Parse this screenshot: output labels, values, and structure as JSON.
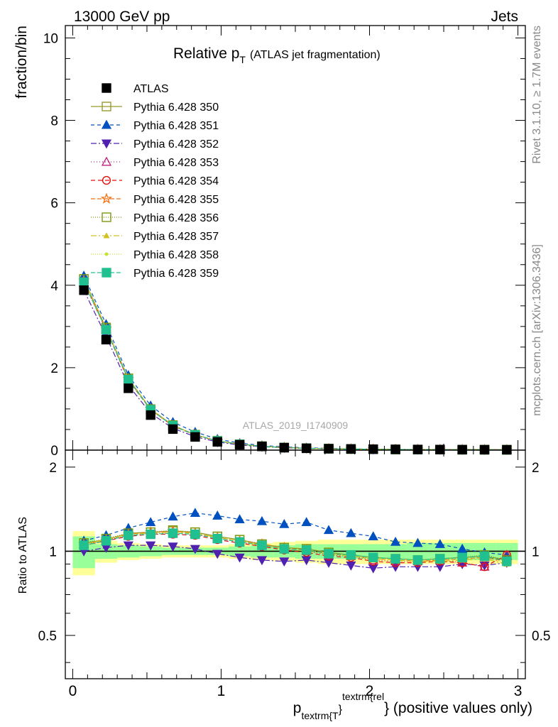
{
  "header": {
    "left": "13000 GeV pp",
    "right": "Jets"
  },
  "side_labels": {
    "rivet": "Rivet 3.1.10, ≥ 1.7M events",
    "mcplots": "mcplots.cern.ch [arXiv:1306.3436]"
  },
  "chart_data": {
    "type": "line",
    "title_main": "Relative p",
    "title_sub": "T",
    "title_extra": "(ATLAS jet fragmentation)",
    "watermark": "ATLAS_2019_I1740909",
    "ylabel": "fraction/bin",
    "ratio_ylabel": "Ratio to ATLAS",
    "xlabel_main": "p",
    "xlabel_sub": "textrm{T",
    "xlabel_sup": "textrm{rel",
    "xlabel_tail": "} (positive values only)",
    "xlim": [
      -0.05,
      3.05
    ],
    "ylim": [
      0,
      10.3
    ],
    "ratio_ylim": [
      0.35,
      2.3
    ],
    "xticks": [
      "0",
      "1",
      "2",
      "3"
    ],
    "yticks": [
      "0",
      "2",
      "4",
      "6",
      "8",
      "10"
    ],
    "ratio_yticks": [
      "0.5",
      "1",
      "2"
    ],
    "x": [
      0.075,
      0.225,
      0.375,
      0.525,
      0.675,
      0.825,
      0.975,
      1.125,
      1.275,
      1.425,
      1.575,
      1.725,
      1.875,
      2.025,
      2.175,
      2.325,
      2.475,
      2.625,
      2.775,
      2.925
    ],
    "data": {
      "name": "ATLAS",
      "values": [
        3.88,
        2.68,
        1.5,
        0.85,
        0.51,
        0.32,
        0.2,
        0.13,
        0.09,
        0.06,
        0.045,
        0.035,
        0.028,
        0.022,
        0.018,
        0.015,
        0.013,
        0.011,
        0.01,
        0.009
      ],
      "band_inner": [
        0.13,
        0.06,
        0.05,
        0.04,
        0.03,
        0.03,
        0.03,
        0.04,
        0.05,
        0.05,
        0.06,
        0.06,
        0.06,
        0.06,
        0.06,
        0.07,
        0.07,
        0.07,
        0.07,
        0.07
      ],
      "band_outer": [
        0.18,
        0.09,
        0.07,
        0.06,
        0.05,
        0.05,
        0.05,
        0.06,
        0.07,
        0.08,
        0.09,
        0.1,
        0.1,
        0.1,
        0.1,
        0.1,
        0.1,
        0.1,
        0.1,
        0.1
      ]
    },
    "series": [
      {
        "name": "Pythia 6.428 350",
        "color": "#9a9a2a",
        "marker": "square-open",
        "dash": "",
        "ratio": [
          1.07,
          1.1,
          1.16,
          1.17,
          1.18,
          1.17,
          1.13,
          1.1,
          1.06,
          1.03,
          1.02,
          0.99,
          0.97,
          0.95,
          0.94,
          0.93,
          0.94,
          0.95,
          0.96,
          0.93
        ]
      },
      {
        "name": "Pythia 6.428 351",
        "color": "#0050c0",
        "marker": "triangle-up",
        "dash": "5,4",
        "ratio": [
          1.09,
          1.14,
          1.21,
          1.27,
          1.33,
          1.37,
          1.34,
          1.3,
          1.28,
          1.25,
          1.27,
          1.19,
          1.16,
          1.13,
          1.08,
          1.07,
          1.06,
          1.02,
          0.99,
          0.97
        ]
      },
      {
        "name": "Pythia 6.428 352",
        "color": "#5020b0",
        "marker": "triangle-down",
        "dash": "8,3,2,3",
        "ratio": [
          1.0,
          1.03,
          1.05,
          1.05,
          1.04,
          1.02,
          0.98,
          0.95,
          0.93,
          0.92,
          0.93,
          0.91,
          0.89,
          0.87,
          0.88,
          0.88,
          0.88,
          0.9,
          0.89,
          0.91
        ]
      },
      {
        "name": "Pythia 6.428 353",
        "color": "#c0207a",
        "marker": "triangle-open",
        "dash": "1,3",
        "ratio": [
          1.05,
          1.09,
          1.14,
          1.16,
          1.16,
          1.15,
          1.11,
          1.08,
          1.05,
          1.02,
          1.0,
          0.97,
          0.96,
          0.93,
          0.92,
          0.92,
          0.93,
          0.91,
          0.88,
          0.97
        ]
      },
      {
        "name": "Pythia 6.428 354",
        "color": "#e01010",
        "marker": "circle-open",
        "dash": "6,4",
        "ratio": [
          1.05,
          1.09,
          1.13,
          1.15,
          1.15,
          1.14,
          1.1,
          1.07,
          1.04,
          1.01,
          0.99,
          0.96,
          0.95,
          0.92,
          0.91,
          0.91,
          0.92,
          0.91,
          0.88,
          0.97
        ]
      },
      {
        "name": "Pythia 6.428 355",
        "color": "#f07010",
        "marker": "star-open",
        "dash": "6,3",
        "ratio": [
          1.06,
          1.1,
          1.15,
          1.17,
          1.18,
          1.16,
          1.12,
          1.09,
          1.06,
          1.03,
          1.01,
          0.98,
          0.96,
          0.94,
          0.93,
          0.92,
          0.93,
          0.94,
          0.95,
          0.92
        ]
      },
      {
        "name": "Pythia 6.428 356",
        "color": "#7a9a10",
        "marker": "square-open",
        "dash": "1,2",
        "ratio": [
          1.07,
          1.11,
          1.16,
          1.17,
          1.19,
          1.17,
          1.13,
          1.1,
          1.06,
          1.03,
          1.02,
          0.99,
          0.97,
          0.95,
          0.94,
          0.93,
          0.94,
          0.95,
          0.97,
          0.93
        ]
      },
      {
        "name": "Pythia 6.428 357",
        "color": "#d0c020",
        "marker": "tri-small",
        "dash": "8,3,2,3",
        "ratio": [
          1.06,
          1.1,
          1.15,
          1.16,
          1.17,
          1.16,
          1.12,
          1.09,
          1.05,
          1.02,
          1.0,
          0.98,
          0.96,
          0.94,
          0.93,
          0.92,
          0.92,
          0.93,
          0.94,
          0.9
        ]
      },
      {
        "name": "Pythia 6.428 358",
        "color": "#c8e030",
        "marker": "dot",
        "dash": "1,2",
        "ratio": [
          1.06,
          1.1,
          1.15,
          1.16,
          1.17,
          1.16,
          1.12,
          1.09,
          1.05,
          1.02,
          1.01,
          0.98,
          0.96,
          0.94,
          0.93,
          0.93,
          0.93,
          0.94,
          0.95,
          0.91
        ]
      },
      {
        "name": "Pythia 6.428 359",
        "color": "#20c090",
        "marker": "square-filled",
        "dash": "6,3",
        "ratio": [
          1.05,
          1.09,
          1.14,
          1.15,
          1.16,
          1.15,
          1.11,
          1.08,
          1.05,
          1.02,
          1.01,
          0.98,
          0.97,
          0.95,
          0.94,
          0.93,
          0.94,
          0.95,
          0.96,
          0.92
        ]
      }
    ]
  }
}
